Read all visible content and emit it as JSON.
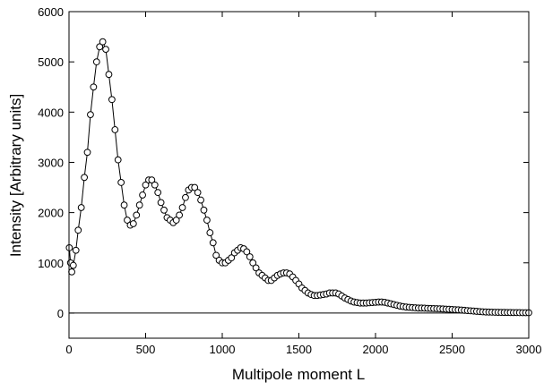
{
  "chart_data": {
    "type": "line",
    "x_label": "Multipole moment L",
    "y_label": "Intensity [Arbitrary units]",
    "xlim": [
      0,
      3000
    ],
    "xticks": [
      0,
      500,
      1000,
      1500,
      2000,
      2500,
      3000
    ],
    "ylim": [
      -500,
      6000
    ],
    "yticks": [
      0,
      1000,
      2000,
      3000,
      4000,
      5000,
      6000
    ],
    "hline": 0,
    "series": [
      {
        "color": "#000000",
        "marker": "circle",
        "x": [
          2,
          10,
          18,
          28,
          45,
          60,
          80,
          100,
          120,
          140,
          160,
          180,
          200,
          220,
          240,
          260,
          280,
          300,
          320,
          340,
          360,
          380,
          400,
          420,
          440,
          460,
          480,
          500,
          520,
          540,
          560,
          580,
          600,
          620,
          640,
          660,
          680,
          700,
          720,
          740,
          760,
          780,
          800,
          820,
          840,
          860,
          880,
          900,
          920,
          940,
          960,
          980,
          1000,
          1020,
          1040,
          1060,
          1080,
          1100,
          1120,
          1140,
          1160,
          1180,
          1200,
          1220,
          1240,
          1260,
          1280,
          1300,
          1320,
          1340,
          1360,
          1380,
          1400,
          1420,
          1440,
          1460,
          1480,
          1500,
          1520,
          1540,
          1560,
          1580,
          1600,
          1620,
          1640,
          1660,
          1680,
          1700,
          1720,
          1740,
          1760,
          1780,
          1800,
          1820,
          1840,
          1860,
          1880,
          1900,
          1920,
          1940,
          1960,
          1980,
          2000,
          2020,
          2040,
          2060,
          2080,
          2100,
          2120,
          2140,
          2160,
          2180,
          2200,
          2220,
          2240,
          2260,
          2280,
          2300,
          2320,
          2340,
          2360,
          2380,
          2400,
          2420,
          2440,
          2460,
          2480,
          2500,
          2520,
          2540,
          2560,
          2580,
          2600,
          2620,
          2640,
          2660,
          2680,
          2700,
          2720,
          2740,
          2760,
          2780,
          2800,
          2820,
          2840,
          2860,
          2880,
          2900,
          2920,
          2940,
          2960,
          2980,
          3000
        ],
        "values": [
          1300,
          1000,
          820,
          950,
          1250,
          1650,
          2100,
          2700,
          3200,
          3950,
          4500,
          5000,
          5300,
          5400,
          5250,
          4750,
          4250,
          3650,
          3050,
          2600,
          2150,
          1850,
          1750,
          1780,
          1950,
          2150,
          2350,
          2550,
          2650,
          2650,
          2550,
          2400,
          2200,
          2050,
          1900,
          1850,
          1800,
          1850,
          1950,
          2100,
          2300,
          2450,
          2500,
          2500,
          2400,
          2250,
          2050,
          1850,
          1600,
          1400,
          1150,
          1050,
          1000,
          1000,
          1050,
          1100,
          1200,
          1250,
          1300,
          1280,
          1220,
          1120,
          1000,
          900,
          800,
          750,
          700,
          650,
          650,
          700,
          750,
          780,
          800,
          800,
          780,
          720,
          650,
          580,
          500,
          450,
          400,
          370,
          350,
          350,
          360,
          370,
          380,
          400,
          400,
          400,
          380,
          340,
          300,
          270,
          240,
          220,
          210,
          200,
          200,
          200,
          205,
          210,
          215,
          220,
          220,
          215,
          200,
          185,
          170,
          155,
          140,
          130,
          120,
          115,
          110,
          105,
          100,
          100,
          98,
          95,
          92,
          90,
          88,
          85,
          82,
          78,
          75,
          72,
          68,
          65,
          60,
          55,
          50,
          45,
          40,
          35,
          30,
          25,
          22,
          20,
          18,
          16,
          15,
          14,
          13,
          12,
          11,
          10,
          10,
          9,
          8,
          8,
          7
        ]
      }
    ]
  }
}
